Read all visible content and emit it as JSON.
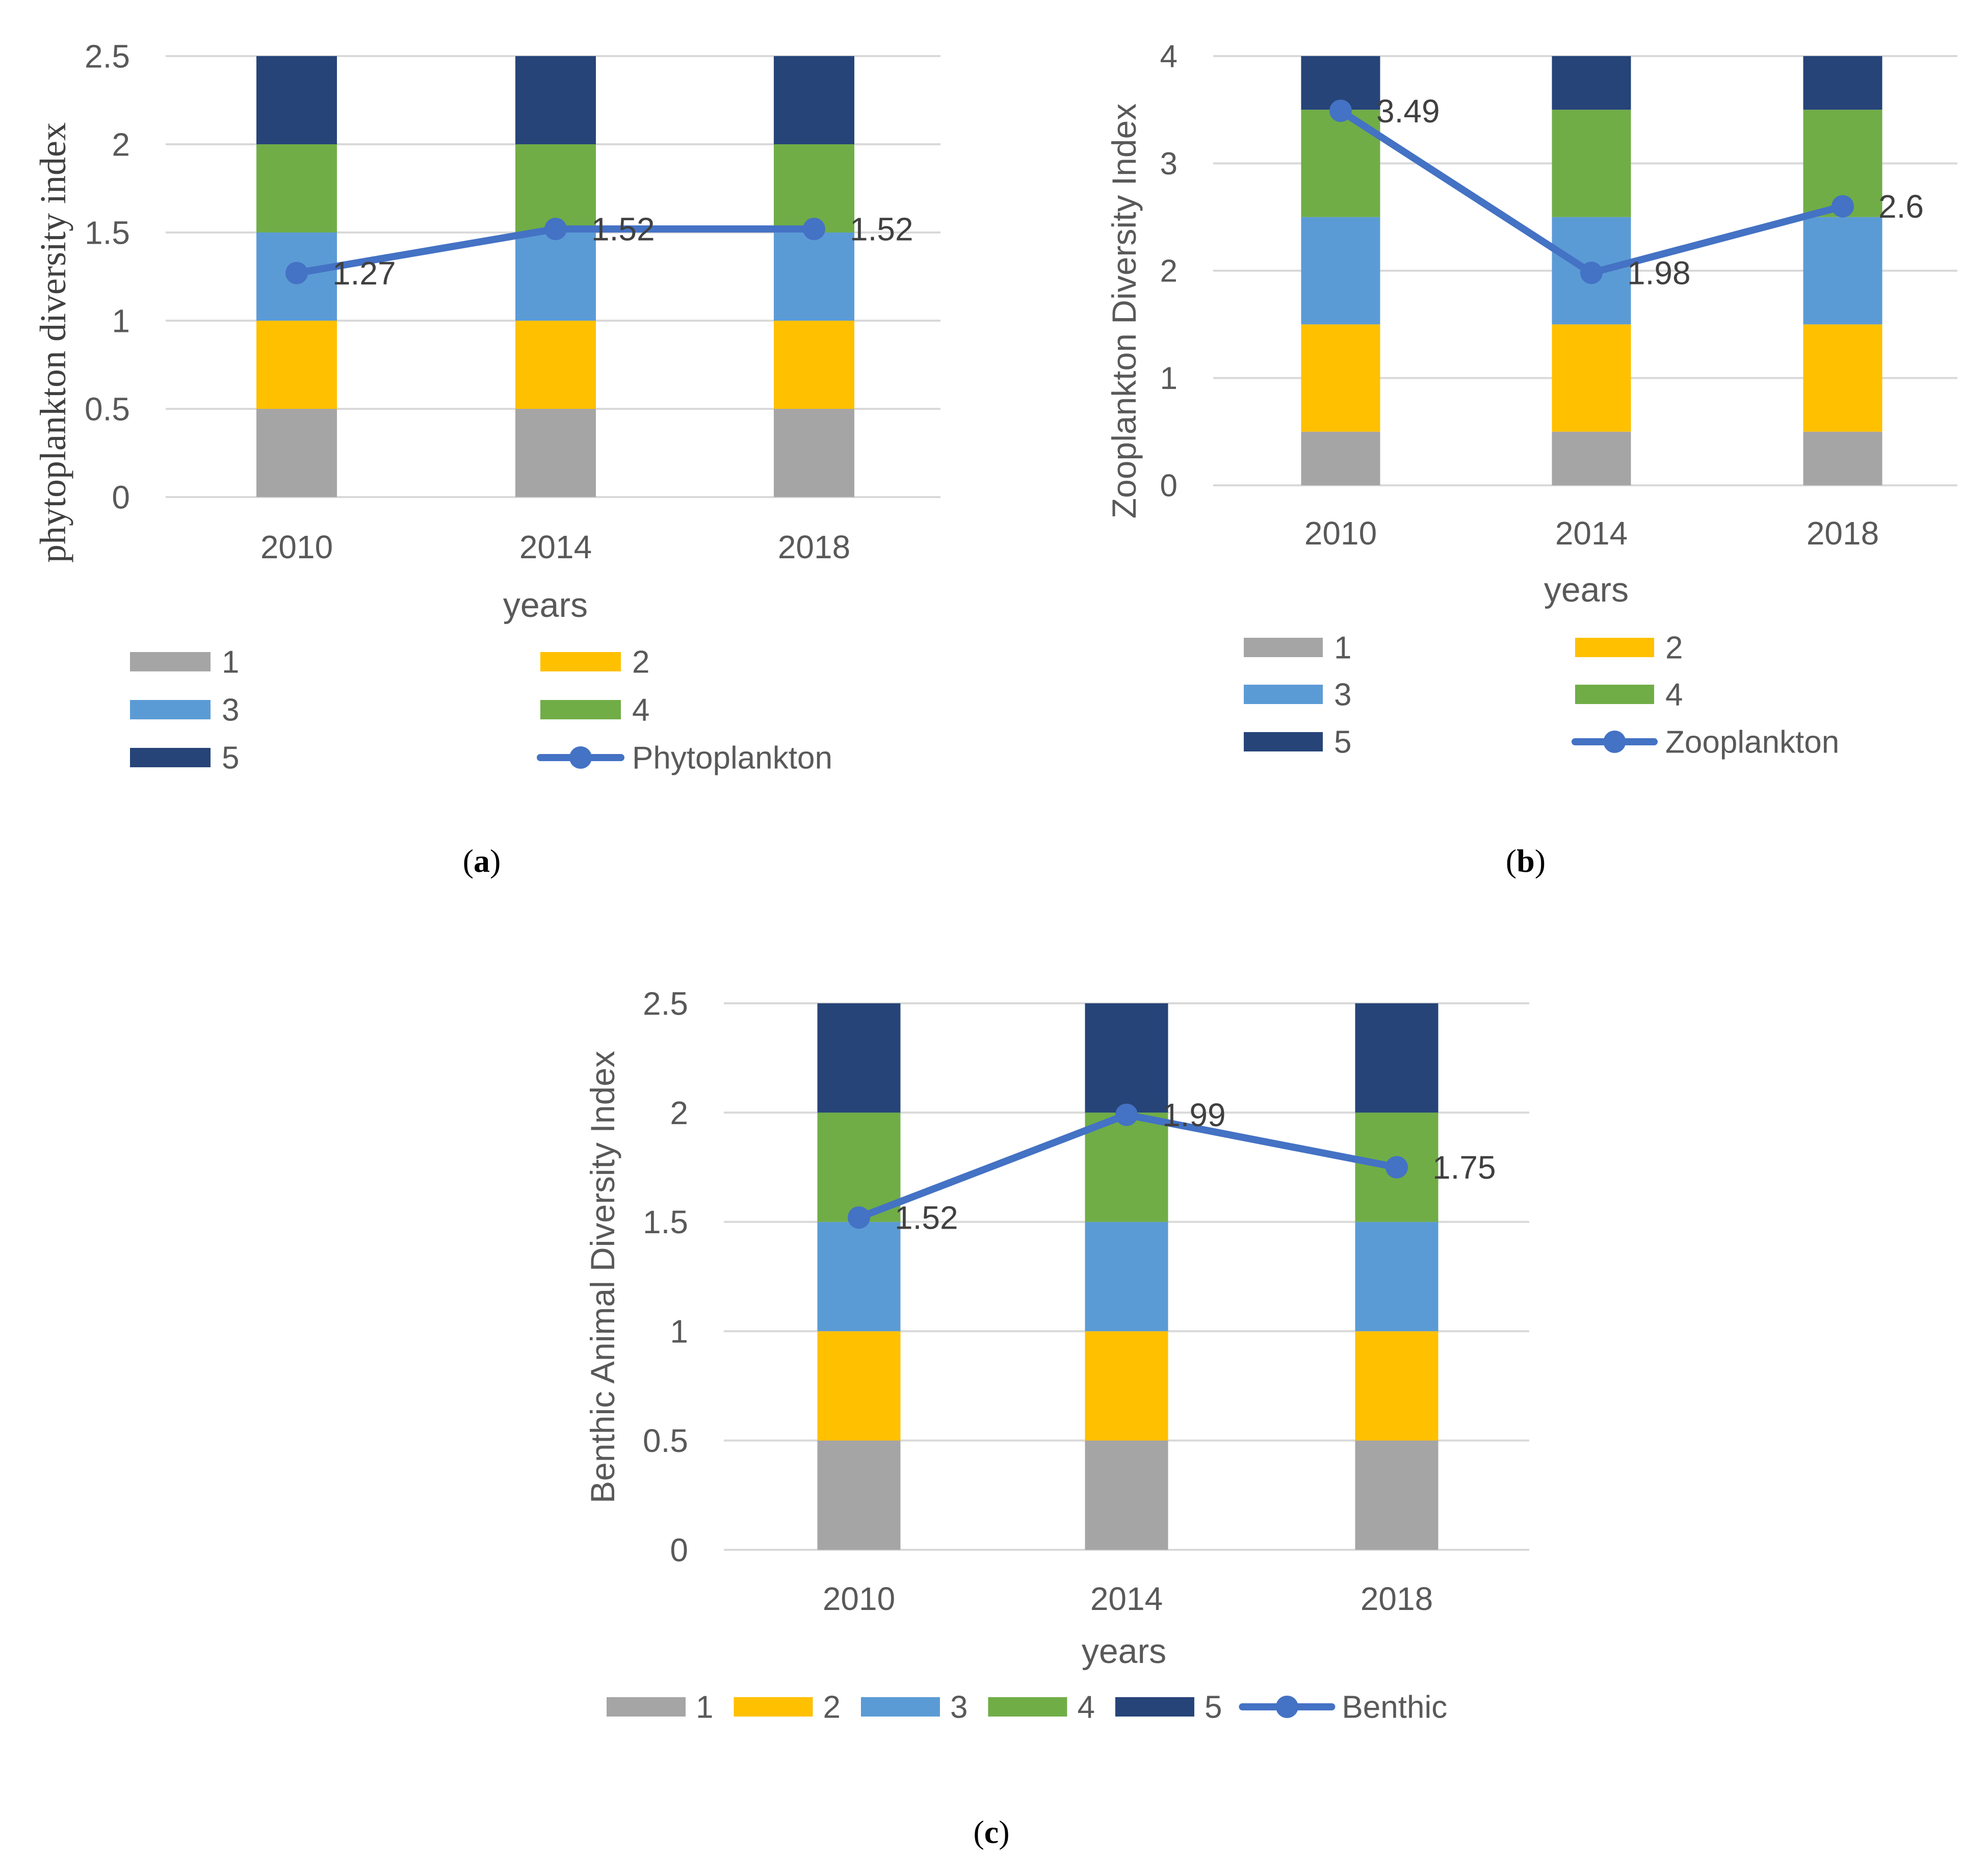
{
  "chart_data": [
    {
      "panel": "(a)",
      "panel_letter": "a",
      "type": "bar",
      "stacked": true,
      "categories": [
        "2010",
        "2014",
        "2018"
      ],
      "series": [
        {
          "name": "1",
          "values": [
            0.5,
            0.5,
            0.5
          ],
          "color": "#A5A5A5"
        },
        {
          "name": "2",
          "values": [
            0.5,
            0.5,
            0.5
          ],
          "color": "#FFC000"
        },
        {
          "name": "3",
          "values": [
            0.5,
            0.5,
            0.5
          ],
          "color": "#5B9BD5"
        },
        {
          "name": "4",
          "values": [
            0.5,
            0.5,
            0.5
          ],
          "color": "#70AD47"
        },
        {
          "name": "5",
          "values": [
            0.5,
            0.5,
            0.5
          ],
          "color": "#264478"
        }
      ],
      "line": {
        "name": "Phytoplankton",
        "values": [
          1.27,
          1.52,
          1.52
        ],
        "labels": [
          "1.27",
          "1.52",
          "1.52"
        ],
        "color": "#4472C4"
      },
      "ylim": [
        0,
        2.5
      ],
      "yticks": [
        "0",
        "0.5",
        "1",
        "1.5",
        "2",
        "2.5"
      ],
      "xlabel": "years",
      "ylabel": "phytoplankton diversity index",
      "legend": "bottom, two columns"
    },
    {
      "panel": "(b)",
      "panel_letter": "b",
      "type": "bar",
      "stacked": true,
      "categories": [
        "2010",
        "2014",
        "2018"
      ],
      "series": [
        {
          "name": "1",
          "values": [
            0.5,
            0.5,
            0.5
          ],
          "color": "#A5A5A5"
        },
        {
          "name": "2",
          "values": [
            1,
            1,
            1
          ],
          "color": "#FFC000"
        },
        {
          "name": "3",
          "values": [
            1,
            1,
            1
          ],
          "color": "#5B9BD5"
        },
        {
          "name": "4",
          "values": [
            1,
            1,
            1
          ],
          "color": "#70AD47"
        },
        {
          "name": "5",
          "values": [
            0.5,
            0.5,
            0.5
          ],
          "color": "#264478"
        }
      ],
      "line": {
        "name": "Zooplankton",
        "values": [
          3.49,
          1.98,
          2.6
        ],
        "labels": [
          "3.49",
          "1.98",
          "2.6"
        ],
        "color": "#4472C4"
      },
      "ylim": [
        0,
        4
      ],
      "yticks": [
        "0",
        "1",
        "2",
        "3",
        "4"
      ],
      "xlabel": "years",
      "ylabel": "Zooplankton Diversity Index",
      "legend": "bottom, two columns"
    },
    {
      "panel": "(c)",
      "panel_letter": "c",
      "type": "bar",
      "stacked": true,
      "categories": [
        "2010",
        "2014",
        "2018"
      ],
      "series": [
        {
          "name": "1",
          "values": [
            0.5,
            0.5,
            0.5
          ],
          "color": "#A5A5A5"
        },
        {
          "name": "2",
          "values": [
            0.5,
            0.5,
            0.5
          ],
          "color": "#FFC000"
        },
        {
          "name": "3",
          "values": [
            0.5,
            0.5,
            0.5
          ],
          "color": "#5B9BD5"
        },
        {
          "name": "4",
          "values": [
            0.5,
            0.5,
            0.5
          ],
          "color": "#70AD47"
        },
        {
          "name": "5",
          "values": [
            0.5,
            0.5,
            0.5
          ],
          "color": "#264478"
        }
      ],
      "line": {
        "name": "Benthic",
        "values": [
          1.52,
          1.99,
          1.75
        ],
        "labels": [
          "1.52",
          "1.99",
          "1.75"
        ],
        "color": "#4472C4"
      },
      "ylim": [
        0,
        2.5
      ],
      "yticks": [
        "0",
        "0.5",
        "1",
        "1.5",
        "2",
        "2.5"
      ],
      "xlabel": "years",
      "ylabel": "Benthic Animal Diversity Index",
      "legend": "bottom, single row"
    }
  ]
}
